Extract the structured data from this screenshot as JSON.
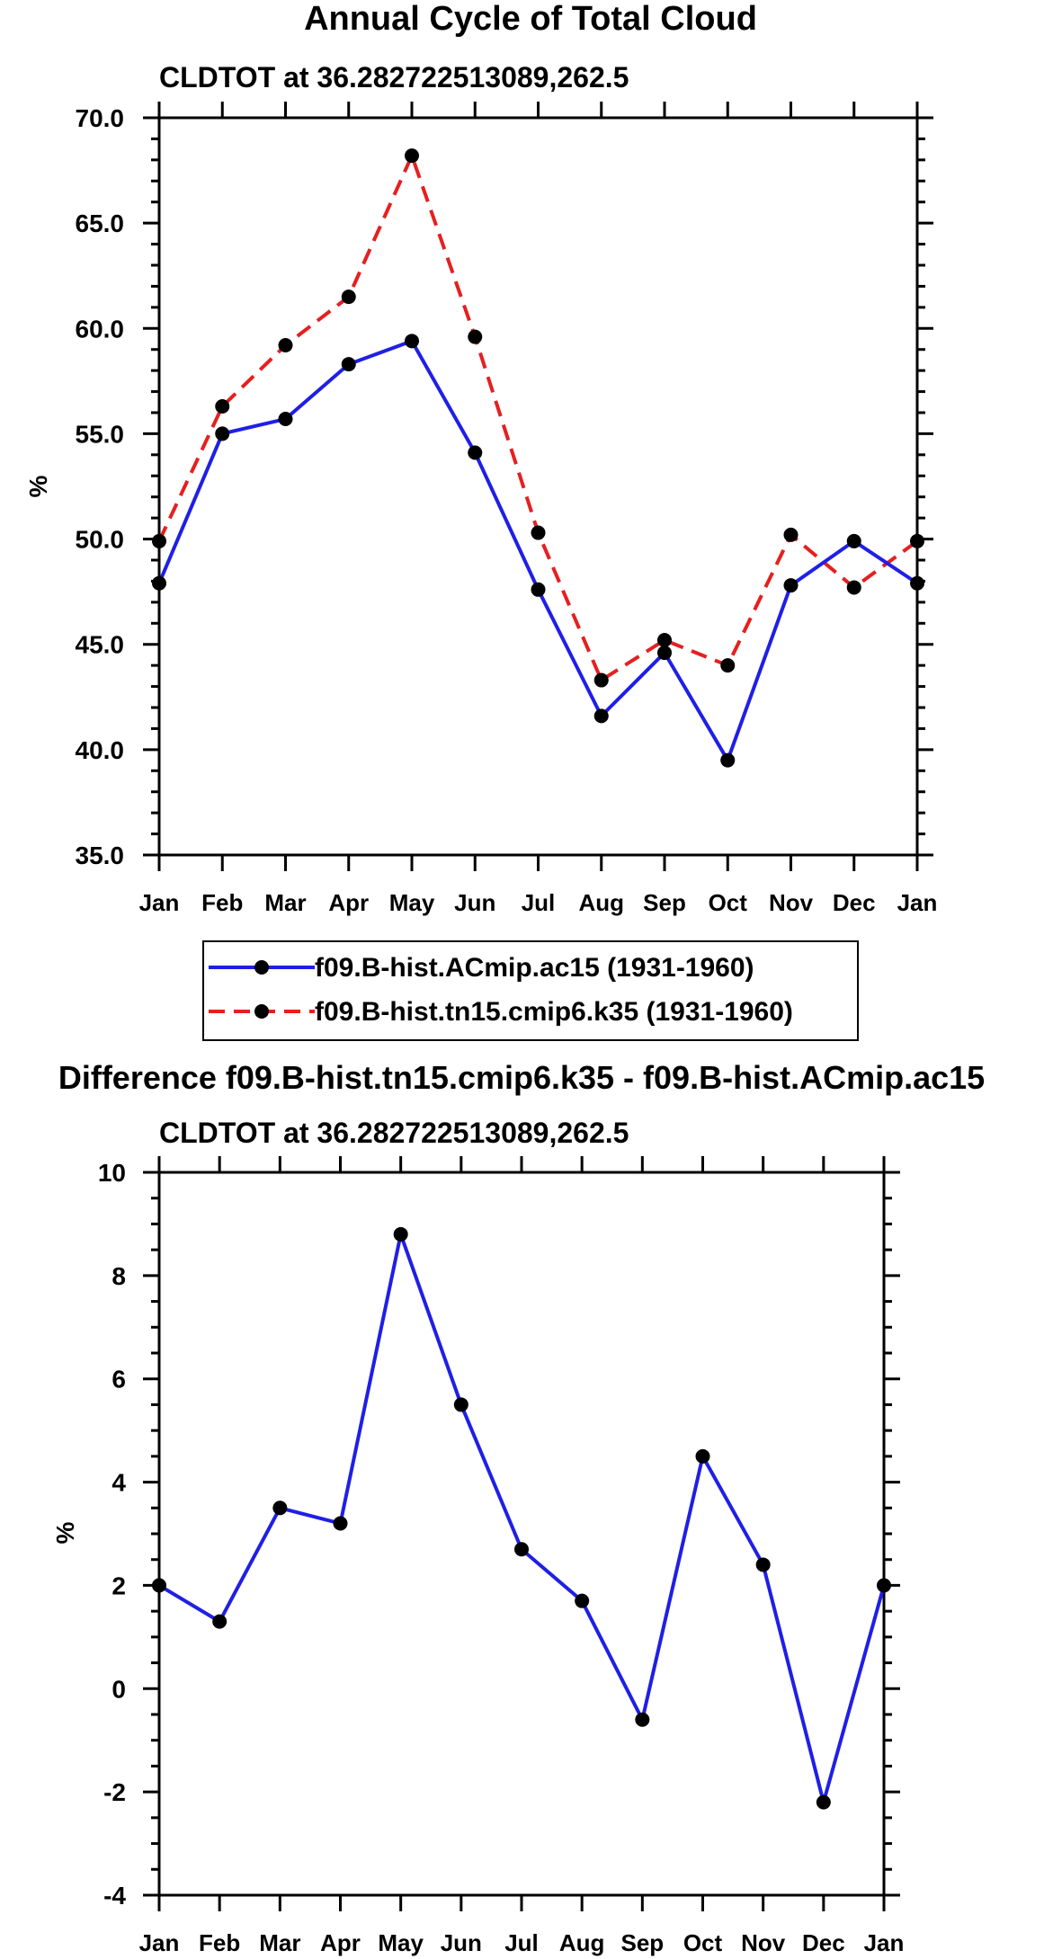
{
  "chart_data": [
    {
      "type": "line",
      "title": "Annual Cycle of Total Cloud",
      "subtitle": "CLDTOT at 36.282722513089,262.5",
      "xlabel": "",
      "ylabel": "%",
      "categories": [
        "Jan",
        "Feb",
        "Mar",
        "Apr",
        "May",
        "Jun",
        "Jul",
        "Aug",
        "Sep",
        "Oct",
        "Nov",
        "Dec",
        "Jan"
      ],
      "ylim": [
        35,
        70
      ],
      "yticks": [
        35,
        40,
        45,
        50,
        55,
        60,
        65,
        70
      ],
      "ytick_labels": [
        "35.0",
        "40.0",
        "45.0",
        "50.0",
        "55.0",
        "60.0",
        "65.0",
        "70.0"
      ],
      "grid": false,
      "series": [
        {
          "name": "f09.B-hist.ACmip.ac15 (1931-1960)",
          "color": "#1f1fe6",
          "dash": "solid",
          "values": [
            47.9,
            55.0,
            55.7,
            58.3,
            59.4,
            54.1,
            47.6,
            41.6,
            44.6,
            39.5,
            47.8,
            49.9,
            47.9
          ]
        },
        {
          "name": "f09.B-hist.tn15.cmip6.k35 (1931-1960)",
          "color": "#e61f1f",
          "dash": "dashed",
          "values": [
            49.9,
            56.3,
            59.2,
            61.5,
            68.2,
            59.6,
            50.3,
            43.3,
            45.2,
            44.0,
            50.2,
            47.7,
            49.9
          ]
        }
      ],
      "legend": "bottom-center"
    },
    {
      "type": "line",
      "title": "Difference f09.B-hist.tn15.cmip6.k35 - f09.B-hist.ACmip.ac15",
      "subtitle": "CLDTOT at 36.282722513089,262.5",
      "xlabel": "",
      "ylabel": "%",
      "categories": [
        "Jan",
        "Feb",
        "Mar",
        "Apr",
        "May",
        "Jun",
        "Jul",
        "Aug",
        "Sep",
        "Oct",
        "Nov",
        "Dec",
        "Jan"
      ],
      "ylim": [
        -4,
        10
      ],
      "yticks": [
        -4,
        -2,
        0,
        2,
        4,
        6,
        8,
        10
      ],
      "ytick_labels": [
        "-4",
        "-2",
        "0",
        "2",
        "4",
        "6",
        "8",
        "10"
      ],
      "grid": false,
      "series": [
        {
          "name": "Difference",
          "color": "#1f1fe6",
          "dash": "solid",
          "values": [
            2.0,
            1.3,
            3.5,
            3.2,
            8.8,
            5.5,
            2.7,
            1.7,
            -0.6,
            4.5,
            2.4,
            -2.2,
            2.0
          ]
        }
      ]
    }
  ]
}
